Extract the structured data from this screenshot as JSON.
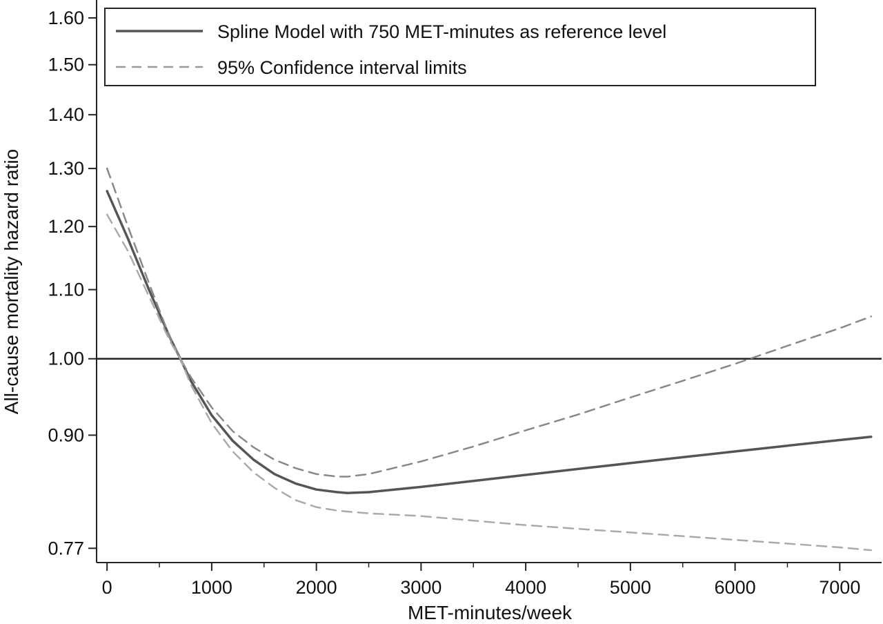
{
  "chart_data": {
    "type": "line",
    "xlabel": "MET-minutes/week",
    "ylabel": "All-cause mortality hazard ratio",
    "y_scale": "log",
    "xlim": [
      -100,
      7400
    ],
    "ylim": [
      0.755,
      1.64
    ],
    "x_ticks": [
      0,
      1000,
      2000,
      3000,
      4000,
      5000,
      6000,
      7000
    ],
    "x_tick_labels": [
      "0",
      "1000",
      "2000",
      "3000",
      "4000",
      "5000",
      "6000",
      "7000"
    ],
    "y_ticks": [
      0.77,
      0.9,
      1.0,
      1.1,
      1.2,
      1.3,
      1.4,
      1.5,
      1.6
    ],
    "y_tick_labels": [
      "0.77",
      "0.90",
      "1.00",
      "1.10",
      "1.20",
      "1.30",
      "1.40",
      "1.50",
      "1.60"
    ],
    "reference_line": {
      "y": 1.0
    },
    "legend": {
      "position": "top",
      "entries": [
        {
          "label": "Spline Model with 750 MET-minutes as reference level",
          "style": "solid"
        },
        {
          "label": "95% Confidence interval limits",
          "style": "dashed"
        }
      ]
    },
    "series": [
      {
        "name": "Spline Model with 750 MET-minutes as reference level",
        "style": "solid",
        "color": "#555555",
        "x": [
          0,
          200,
          400,
          600,
          700,
          800,
          1000,
          1200,
          1400,
          1600,
          1800,
          2000,
          2200,
          2300,
          2500,
          3000,
          3500,
          4000,
          4500,
          5000,
          5500,
          6000,
          6500,
          7000,
          7300
        ],
        "y": [
          1.26,
          1.18,
          1.1,
          1.03,
          1.0,
          0.97,
          0.925,
          0.893,
          0.87,
          0.853,
          0.842,
          0.835,
          0.832,
          0.831,
          0.832,
          0.838,
          0.845,
          0.852,
          0.859,
          0.866,
          0.873,
          0.88,
          0.887,
          0.894,
          0.898
        ]
      },
      {
        "name": "95% Confidence interval upper limit",
        "style": "dashed",
        "color": "#888888",
        "x": [
          0,
          200,
          400,
          600,
          700,
          800,
          1000,
          1200,
          1400,
          1600,
          1800,
          2000,
          2200,
          2300,
          2500,
          3000,
          3500,
          4000,
          4500,
          5000,
          5500,
          6000,
          6500,
          7000,
          7300
        ],
        "y": [
          1.3,
          1.2,
          1.11,
          1.03,
          1.0,
          0.975,
          0.935,
          0.905,
          0.885,
          0.87,
          0.86,
          0.853,
          0.85,
          0.85,
          0.853,
          0.868,
          0.886,
          0.906,
          0.926,
          0.948,
          0.97,
          0.993,
          1.018,
          1.043,
          1.06
        ]
      },
      {
        "name": "95% Confidence interval lower limit",
        "style": "dashed",
        "color": "#aaaaaa",
        "x": [
          0,
          200,
          400,
          600,
          700,
          800,
          1000,
          1200,
          1400,
          1600,
          1800,
          2000,
          2200,
          2300,
          2500,
          3000,
          3500,
          4000,
          4500,
          5000,
          5500,
          6000,
          6500,
          7000,
          7300
        ],
        "y": [
          1.22,
          1.16,
          1.09,
          1.025,
          1.0,
          0.965,
          0.915,
          0.88,
          0.855,
          0.837,
          0.823,
          0.815,
          0.811,
          0.81,
          0.808,
          0.805,
          0.8,
          0.795,
          0.791,
          0.787,
          0.783,
          0.779,
          0.775,
          0.771,
          0.768
        ]
      }
    ]
  }
}
